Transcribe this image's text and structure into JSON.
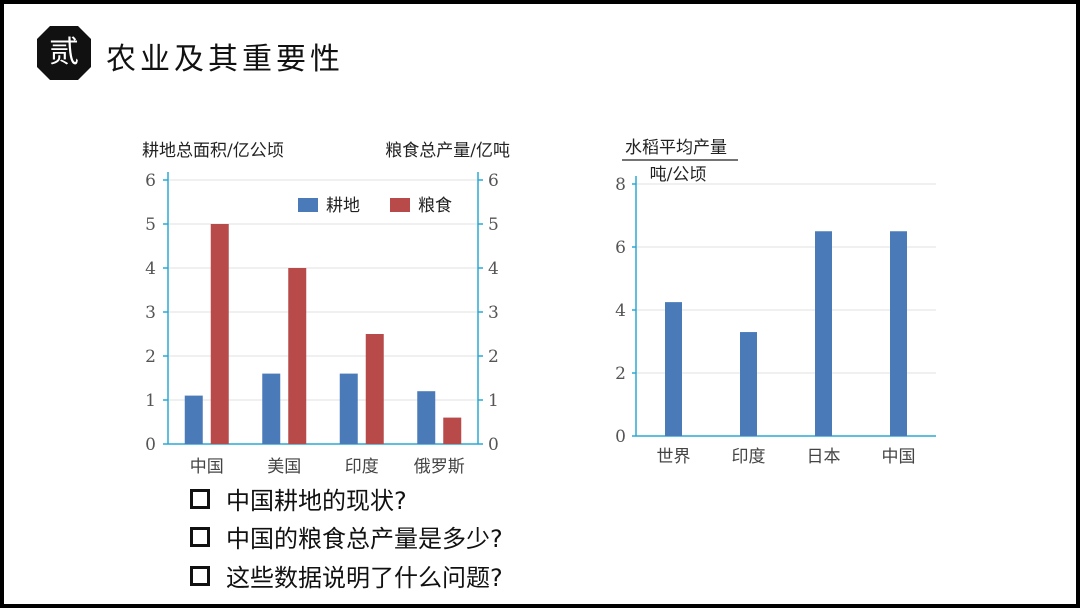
{
  "header": {
    "badge": "贰",
    "title": "农业及其重要性"
  },
  "colors": {
    "blue": "#4a7bb8",
    "red": "#b94a4a",
    "axis": "#2ba8d3",
    "grid": "#e2e2e2",
    "badge_bg": "#111111"
  },
  "chart_data": [
    {
      "type": "bar",
      "categories": [
        "中国",
        "美国",
        "印度",
        "俄罗斯"
      ],
      "series": [
        {
          "name": "耕地",
          "values": [
            1.1,
            1.6,
            1.6,
            1.2
          ]
        },
        {
          "name": "粮食",
          "values": [
            5.0,
            4.0,
            2.5,
            0.6
          ]
        }
      ],
      "ylabel_left": "耕地总面积/亿公顷",
      "ylabel_right": "粮食总产量/亿吨",
      "ylim": [
        0,
        6
      ],
      "yticks": [
        0,
        1,
        2,
        3,
        4,
        5,
        6
      ],
      "legend_position": "top-right",
      "grid": true
    },
    {
      "type": "bar",
      "categories": [
        "世界",
        "印度",
        "日本",
        "中国"
      ],
      "series": [
        {
          "values": [
            4.25,
            3.3,
            6.5,
            6.5
          ]
        }
      ],
      "ylabel_top": "水稻平均产量",
      "ylabel_bottom": "吨/公顷",
      "ylim": [
        0,
        8
      ],
      "yticks": [
        0,
        2,
        4,
        6,
        8
      ],
      "grid": true
    }
  ],
  "questions": [
    "中国耕地的现状?",
    "中国的粮食总产量是多少?",
    "这些数据说明了什么问题?"
  ]
}
